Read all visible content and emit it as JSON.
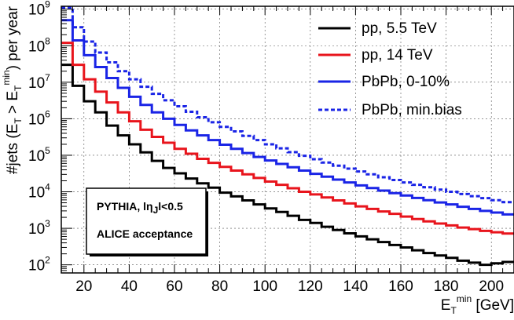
{
  "chart_data": {
    "type": "line",
    "style": "step",
    "x_bin_width": 5,
    "x_start": 10,
    "xlim": [
      10,
      210
    ],
    "ylim": [
      60,
      1200000000
    ],
    "y_scale": "log",
    "grid": true,
    "legend_placement": "top-right",
    "x_ticks": [
      20,
      40,
      60,
      80,
      100,
      120,
      140,
      160,
      180,
      200
    ],
    "y_ticks": [
      {
        "value": 100,
        "base": "10",
        "exp": "2"
      },
      {
        "value": 1000,
        "base": "10",
        "exp": "3"
      },
      {
        "value": 10000,
        "base": "10",
        "exp": "4"
      },
      {
        "value": 100000,
        "base": "10",
        "exp": "5"
      },
      {
        "value": 1000000,
        "base": "10",
        "exp": "6"
      },
      {
        "value": 10000000,
        "base": "10",
        "exp": "7"
      },
      {
        "value": 100000000,
        "base": "10",
        "exp": "8"
      },
      {
        "value": 1000000000,
        "base": "10",
        "exp": "9"
      }
    ],
    "xlabel": {
      "main": "E",
      "sub": "T",
      "sup": "min",
      "unit": " [GeV]"
    },
    "ylabel": {
      "p1": "#jets (E",
      "sub1": "T",
      "p2": " > E",
      "sub2": "T",
      "sup2": "min",
      "p3": ") per year"
    },
    "annotation": {
      "line1_pre": "PYTHIA, l",
      "line1_eta": "η",
      "line1_sub": "J",
      "line1_post": "l<0.5",
      "line2": "ALICE acceptance"
    },
    "series": [
      {
        "name": "pp, 5.5 TeV",
        "color": "#000000",
        "dash": "solid",
        "values": [
          30000000.0,
          8000000.0,
          3000000.0,
          1500000.0,
          650000.0,
          350000.0,
          200000.0,
          120000.0,
          70000.0,
          45000.0,
          32000.0,
          23000.0,
          17000.0,
          13000.0,
          9500.0,
          7500.0,
          5800.0,
          4500.0,
          3500.0,
          2800.0,
          2200.0,
          1700.0,
          1400.0,
          1100.0,
          900,
          730,
          600,
          500,
          420,
          350,
          300,
          250,
          210,
          180,
          155,
          130,
          115,
          100,
          110,
          120
        ]
      },
      {
        "name": "pp, 14 TeV",
        "color": "#e8141c",
        "dash": "solid",
        "values": [
          120000000.0,
          30000000.0,
          12000000.0,
          5500000.0,
          2800000.0,
          1500000.0,
          850000.0,
          500000.0,
          320000.0,
          220000.0,
          150000.0,
          110000.0,
          80000.0,
          62000.0,
          48000.0,
          38000.0,
          30000.0,
          24000.0,
          19000.0,
          15500.0,
          12500.0,
          10000.0,
          8500.0,
          7000.0,
          5800.0,
          4800.0,
          4000.0,
          3400.0,
          2900.0,
          2500.0,
          2100.0,
          1800.0,
          1550.0,
          1350.0,
          1200.0,
          1050.0,
          950,
          850,
          780,
          720
        ]
      },
      {
        "name": "PbPb, 0-10%",
        "color": "#1a24e6",
        "dash": "solid",
        "values": [
          500000000.0,
          140000000.0,
          55000000.0,
          26000000.0,
          13000000.0,
          7000000.0,
          4000000.0,
          2400000.0,
          1500000.0,
          1000000.0,
          680000.0,
          480000.0,
          350000.0,
          260000.0,
          195000.0,
          150000.0,
          115000.0,
          90000.0,
          72000.0,
          58000.0,
          47000.0,
          38000.0,
          31000.0,
          26000.0,
          21500.0,
          18000.0,
          15000.0,
          12700.0,
          10800.0,
          9200.0,
          7900.0,
          6800.0,
          5900.0,
          5100.0,
          4500.0,
          3900.0,
          3400.0,
          3000.0,
          2700.0,
          2400.0
        ]
      },
      {
        "name": "PbPb, min.bias",
        "color": "#1a24e6",
        "dash": "dotted",
        "values": [
          1100000000.0,
          320000000.0,
          130000000.0,
          65000000.0,
          35000000.0,
          20000000.0,
          12000000.0,
          7500000.0,
          4800000.0,
          3200000.0,
          2200000.0,
          1550000.0,
          1100000.0,
          800000.0,
          600000.0,
          450000.0,
          340000.0,
          260000.0,
          200000.0,
          155000.0,
          122000.0,
          97000.0,
          78000.0,
          63000.0,
          52000.0,
          43000.0,
          36000.0,
          30000.0,
          25000.0,
          21000.0,
          18000.0,
          15500.0,
          13300.0,
          11500.0,
          10000.0,
          8700.0,
          7600.0,
          6700.0,
          5900.0,
          5200.0
        ]
      }
    ]
  }
}
